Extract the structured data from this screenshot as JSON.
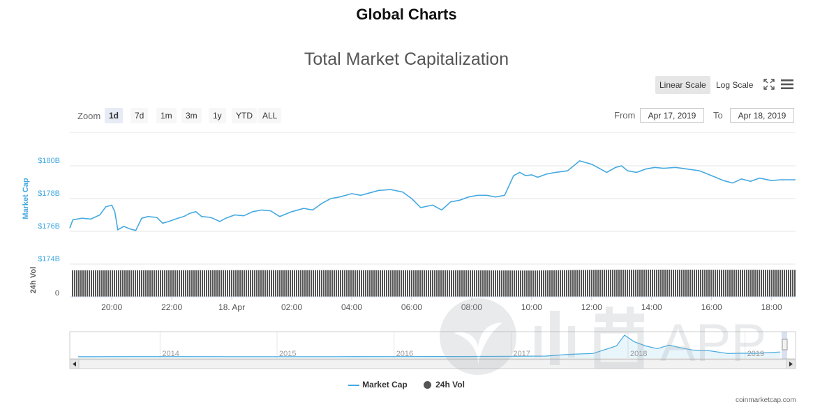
{
  "page_title": "Global Charts",
  "chart_title": "Total Market Capitalization",
  "scale_buttons": {
    "linear": "Linear Scale",
    "log": "Log Scale",
    "active": "linear"
  },
  "zoom": {
    "label": "Zoom",
    "options": [
      "1d",
      "7d",
      "1m",
      "3m",
      "1y",
      "YTD",
      "ALL"
    ],
    "active": "1d"
  },
  "range": {
    "from_label": "From",
    "from_value": "Apr 17, 2019",
    "to_label": "To",
    "to_value": "Apr 18, 2019"
  },
  "legend": {
    "market_cap": "Market Cap",
    "volume": "24h Vol"
  },
  "credits": "coinmarketcap.com",
  "watermark": "APP",
  "colors": {
    "market_cap": "#45a9e0",
    "volume": "#555555",
    "axis_label": "#45a9e0"
  },
  "chart_data": {
    "type": "line",
    "ylabel": "Market Cap",
    "ylabel_volume": "24h Vol",
    "y_ticks": [
      "$180B",
      "$178B",
      "$176B",
      "$174B"
    ],
    "y_tick_values": [
      180,
      178,
      176,
      174
    ],
    "ylim": [
      174,
      180.8
    ],
    "volume_ticks": [
      "0"
    ],
    "x_ticks": [
      "20:00",
      "22:00",
      "18. Apr",
      "02:00",
      "04:00",
      "06:00",
      "08:00",
      "10:00",
      "12:00",
      "14:00",
      "16:00",
      "18:00"
    ],
    "x_tick_hours": [
      20,
      22,
      24,
      26,
      28,
      30,
      32,
      34,
      36,
      38,
      40,
      42
    ],
    "xlim_hours": [
      18.6,
      42.8
    ],
    "series": [
      {
        "name": "Market Cap",
        "unit": "billion USD",
        "x_hours": [
          18.6,
          18.7,
          19.0,
          19.3,
          19.6,
          19.8,
          20.0,
          20.1,
          20.2,
          20.4,
          20.6,
          20.8,
          21.0,
          21.2,
          21.5,
          21.7,
          21.9,
          22.2,
          22.4,
          22.6,
          22.8,
          23.0,
          23.3,
          23.6,
          23.8,
          24.1,
          24.4,
          24.7,
          25.0,
          25.3,
          25.6,
          26.0,
          26.4,
          26.7,
          27.0,
          27.3,
          27.6,
          28.0,
          28.3,
          28.6,
          28.9,
          29.3,
          29.7,
          30.0,
          30.3,
          30.7,
          31.0,
          31.3,
          31.6,
          31.9,
          32.2,
          32.5,
          32.8,
          33.1,
          33.4,
          33.6,
          33.8,
          34.0,
          34.2,
          34.5,
          34.8,
          35.2,
          35.6,
          36.0,
          36.2,
          36.5,
          36.8,
          37.0,
          37.2,
          37.5,
          37.8,
          38.1,
          38.4,
          38.8,
          39.2,
          39.6,
          40.0,
          40.4,
          40.7,
          41.0,
          41.3,
          41.6,
          42.0,
          42.3,
          42.8
        ],
        "values": [
          176.2,
          176.7,
          176.8,
          176.75,
          177.0,
          177.5,
          177.6,
          177.2,
          176.1,
          176.3,
          176.15,
          176.05,
          176.8,
          176.9,
          176.85,
          176.5,
          176.6,
          176.8,
          176.9,
          177.1,
          177.2,
          176.9,
          176.85,
          176.6,
          176.8,
          177.0,
          176.95,
          177.2,
          177.3,
          177.25,
          176.9,
          177.2,
          177.4,
          177.3,
          177.7,
          178.0,
          178.1,
          178.3,
          178.2,
          178.35,
          178.5,
          178.55,
          178.4,
          178.0,
          177.45,
          177.6,
          177.3,
          177.8,
          177.9,
          178.1,
          178.2,
          178.2,
          178.1,
          178.2,
          179.4,
          179.6,
          179.4,
          179.45,
          179.3,
          179.5,
          179.6,
          179.7,
          180.3,
          180.1,
          179.9,
          179.6,
          179.9,
          180.0,
          179.7,
          179.6,
          179.8,
          179.9,
          179.85,
          179.9,
          179.8,
          179.7,
          179.4,
          179.1,
          178.95,
          179.2,
          179.05,
          179.25,
          179.1,
          179.15,
          179.15
        ]
      },
      {
        "name": "24h Vol",
        "unit": "billion USD",
        "x_hours": [
          18.6,
          20.0,
          22.0,
          24.0,
          26.0,
          28.0,
          30.0,
          32.0,
          34.0,
          36.0,
          38.0,
          40.0,
          42.8
        ],
        "values": [
          14.9,
          14.9,
          14.95,
          15.0,
          15.0,
          15.0,
          14.95,
          14.9,
          14.8,
          15.2,
          15.3,
          15.25,
          15.2
        ]
      }
    ],
    "navigator": {
      "x_ticks": [
        "2014",
        "2015",
        "2016",
        "2017",
        "2018",
        "2019"
      ],
      "x_tick_years": [
        2014,
        2015,
        2016,
        2017,
        2018,
        2019
      ],
      "xlim_years": [
        2013.3,
        2019.3
      ],
      "series_years": [
        2013.3,
        2013.8,
        2014.2,
        2014.6,
        2015.0,
        2015.5,
        2016.0,
        2016.5,
        2017.0,
        2017.3,
        2017.5,
        2017.7,
        2017.9,
        2017.97,
        2018.05,
        2018.15,
        2018.25,
        2018.35,
        2018.45,
        2018.55,
        2018.7,
        2018.85,
        2018.95,
        2019.1,
        2019.3
      ],
      "series_values": [
        1.5,
        8,
        7,
        5,
        4,
        4,
        7,
        10,
        18,
        25,
        90,
        120,
        400,
        800,
        560,
        400,
        300,
        430,
        330,
        250,
        220,
        120,
        130,
        130,
        175
      ],
      "ylim": [
        0,
        850
      ]
    }
  }
}
